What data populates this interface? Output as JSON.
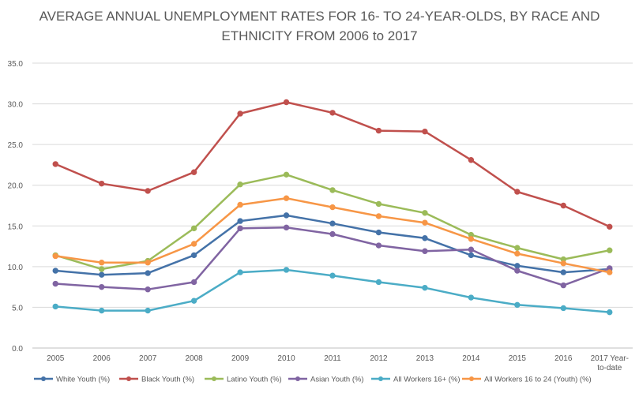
{
  "chart_data": {
    "type": "line",
    "title_line1": "AVERAGE ANNUAL UNEMPLOYMENT RATES FOR 16- TO 24-YEAR-OLDS, BY RACE AND",
    "title_line2": "ETHNICITY FROM 2006 to 2017",
    "xlabel": "",
    "ylabel": "",
    "ylim": [
      0,
      35
    ],
    "yticks": [
      "0.0",
      "5.0",
      "10.0",
      "15.0",
      "20.0",
      "25.0",
      "30.0",
      "35.0"
    ],
    "categories": [
      "2005",
      "2006",
      "2007",
      "2008",
      "2009",
      "2010",
      "2011",
      "2012",
      "2013",
      "2014",
      "2015",
      "2016",
      "2017 Year-to-date"
    ],
    "category_lines": [
      [
        "2005"
      ],
      [
        "2006"
      ],
      [
        "2007"
      ],
      [
        "2008"
      ],
      [
        "2009"
      ],
      [
        "2010"
      ],
      [
        "2011"
      ],
      [
        "2012"
      ],
      [
        "2013"
      ],
      [
        "2014"
      ],
      [
        "2015"
      ],
      [
        "2016"
      ],
      [
        "2017 Year-",
        "to-date"
      ]
    ],
    "grid": true,
    "legend": "bottom",
    "series": [
      {
        "name": "White Youth (%)",
        "color": "#4472a8",
        "values": [
          9.5,
          9.0,
          9.2,
          11.4,
          15.6,
          16.3,
          15.3,
          14.2,
          13.5,
          11.4,
          10.1,
          9.3,
          9.7
        ]
      },
      {
        "name": "Black Youth (%)",
        "color": "#c0504d",
        "values": [
          22.6,
          20.2,
          19.3,
          21.6,
          28.8,
          30.2,
          28.9,
          26.7,
          26.6,
          23.1,
          19.2,
          17.5,
          14.9
        ]
      },
      {
        "name": "Latino Youth (%)",
        "color": "#9bbb59",
        "values": [
          11.4,
          9.7,
          10.7,
          14.7,
          20.1,
          21.3,
          19.4,
          17.7,
          16.6,
          13.9,
          12.3,
          10.9,
          12.0
        ]
      },
      {
        "name": "Asian Youth (%)",
        "color": "#8064a2",
        "values": [
          7.9,
          7.5,
          7.2,
          8.1,
          14.7,
          14.8,
          14.0,
          12.6,
          11.9,
          12.1,
          9.5,
          7.7,
          9.8
        ]
      },
      {
        "name": "All Workers 16+ (%)",
        "color": "#4bacc6",
        "values": [
          5.1,
          4.6,
          4.6,
          5.8,
          9.3,
          9.6,
          8.9,
          8.1,
          7.4,
          6.2,
          5.3,
          4.9,
          4.4
        ]
      },
      {
        "name": "All Workers 16 to 24 (Youth) (%)",
        "color": "#f79646",
        "values": [
          11.3,
          10.5,
          10.5,
          12.8,
          17.6,
          18.4,
          17.3,
          16.2,
          15.4,
          13.4,
          11.6,
          10.4,
          9.3
        ]
      }
    ]
  }
}
